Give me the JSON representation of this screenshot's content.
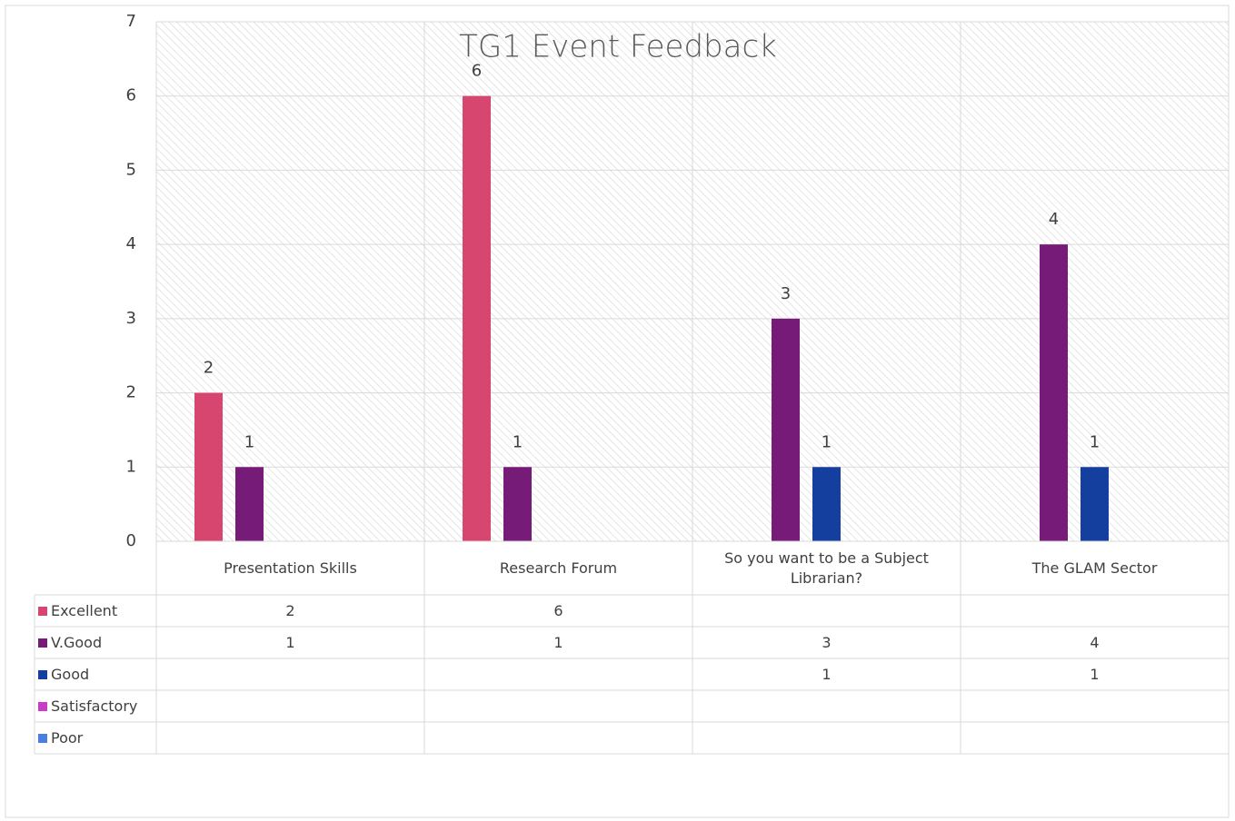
{
  "chart_data": {
    "type": "bar",
    "title": "TG1 Event Feedback",
    "categories": [
      "Presentation Skills",
      "Research Forum",
      "So you want to be a Subject Librarian?",
      "The GLAM Sector"
    ],
    "series": [
      {
        "name": "Excellent",
        "color": "#d6466f",
        "values": [
          2,
          6,
          null,
          null
        ]
      },
      {
        "name": "V.Good",
        "color": "#771b78",
        "values": [
          1,
          1,
          3,
          4
        ]
      },
      {
        "name": "Good",
        "color": "#153f9e",
        "values": [
          null,
          null,
          1,
          1
        ]
      },
      {
        "name": "Satisfactory",
        "color": "#c83cc8",
        "values": [
          null,
          null,
          null,
          null
        ]
      },
      {
        "name": "Poor",
        "color": "#4a7fe0",
        "values": [
          null,
          null,
          null,
          null
        ]
      }
    ],
    "ylim": [
      0,
      7
    ],
    "yticks": [
      0,
      1,
      2,
      3,
      4,
      5,
      6,
      7
    ],
    "grid": true,
    "data_table": true
  }
}
